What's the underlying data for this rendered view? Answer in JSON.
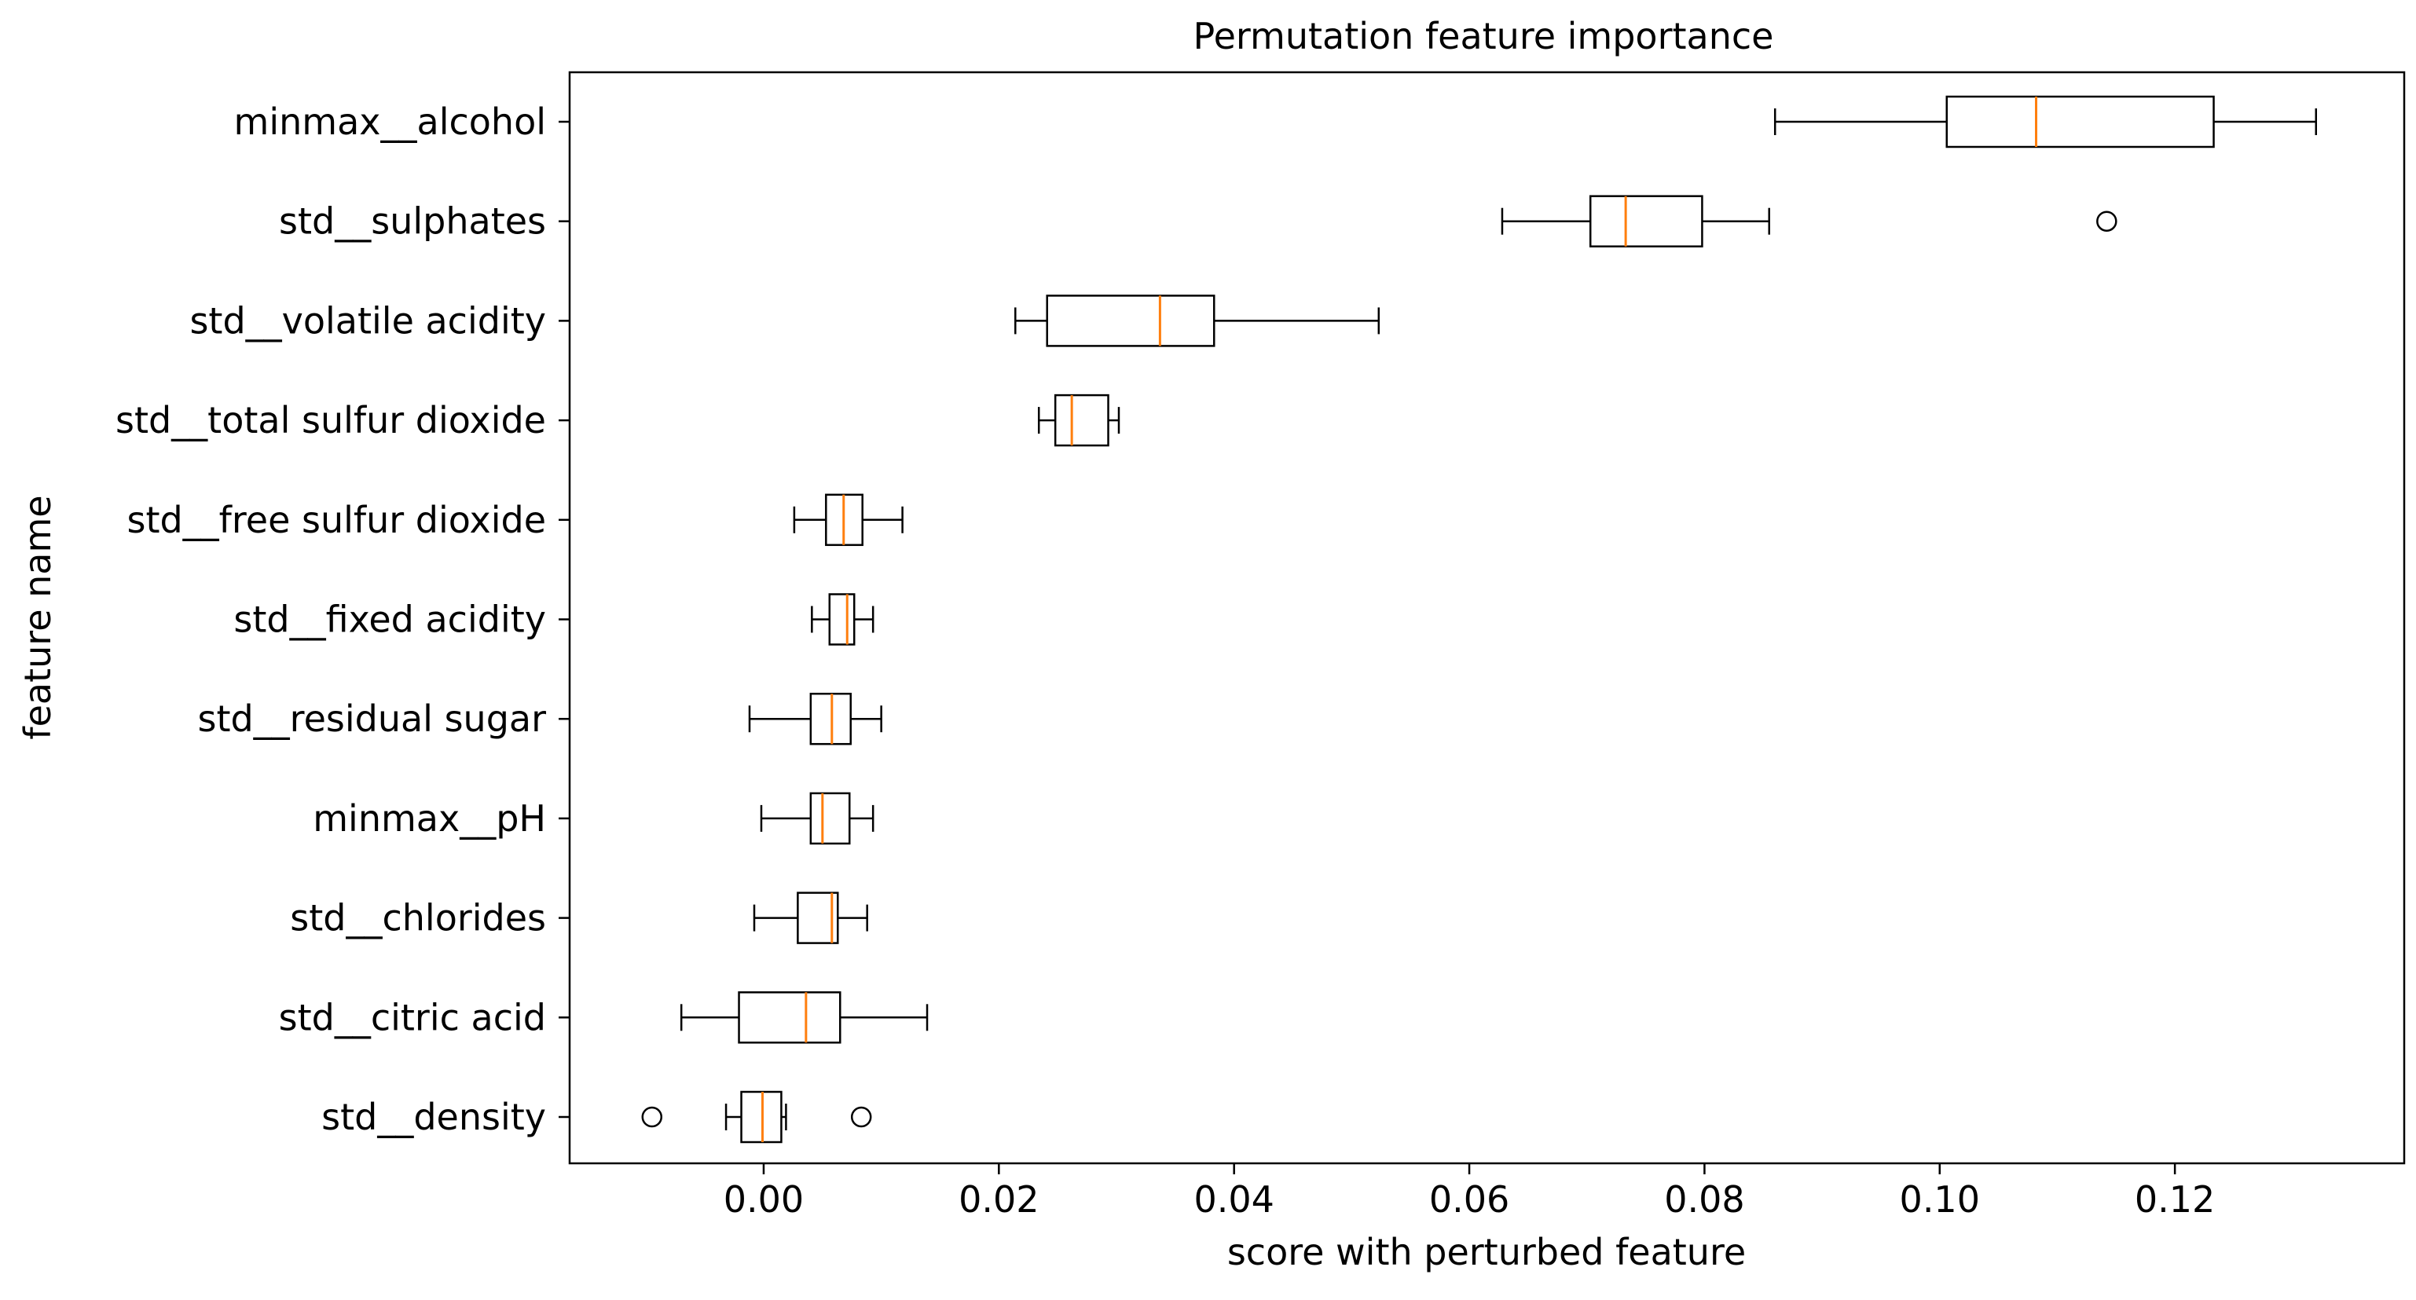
{
  "chart_data": {
    "type": "boxplot",
    "orientation": "horizontal",
    "title": "Permutation feature importance",
    "xlabel": "score with perturbed feature",
    "ylabel": "feature name",
    "xlim": [
      -0.0165,
      0.1395
    ],
    "xticks": [
      0.0,
      0.02,
      0.04,
      0.06,
      0.08,
      0.1,
      0.12
    ],
    "xtick_labels": [
      "0.00",
      "0.02",
      "0.04",
      "0.06",
      "0.08",
      "0.10",
      "0.12"
    ],
    "grid": false,
    "colors": {
      "box": "#000000",
      "median": "#ff7f0e",
      "background": "#ffffff"
    },
    "features": [
      {
        "name": "minmax__alcohol",
        "whisker_low": 0.086,
        "q1": 0.1006,
        "median": 0.1082,
        "q3": 0.1233,
        "whisker_high": 0.132,
        "outliers": []
      },
      {
        "name": "std__sulphates",
        "whisker_low": 0.0628,
        "q1": 0.0703,
        "median": 0.0733,
        "q3": 0.0798,
        "whisker_high": 0.0855,
        "outliers": [
          0.1142
        ]
      },
      {
        "name": "std__volatile acidity",
        "whisker_low": 0.0214,
        "q1": 0.0241,
        "median": 0.0337,
        "q3": 0.0383,
        "whisker_high": 0.0523,
        "outliers": []
      },
      {
        "name": "std__total sulfur dioxide",
        "whisker_low": 0.0234,
        "q1": 0.0248,
        "median": 0.0262,
        "q3": 0.0293,
        "whisker_high": 0.0302,
        "outliers": []
      },
      {
        "name": "std__free sulfur dioxide",
        "whisker_low": 0.0026,
        "q1": 0.0053,
        "median": 0.0068,
        "q3": 0.0084,
        "whisker_high": 0.0118,
        "outliers": []
      },
      {
        "name": "std__fixed acidity",
        "whisker_low": 0.0041,
        "q1": 0.0056,
        "median": 0.0071,
        "q3": 0.0077,
        "whisker_high": 0.0093,
        "outliers": []
      },
      {
        "name": "std__residual sugar",
        "whisker_low": -0.0012,
        "q1": 0.004,
        "median": 0.0058,
        "q3": 0.0074,
        "whisker_high": 0.01,
        "outliers": []
      },
      {
        "name": "minmax__pH",
        "whisker_low": -0.0002,
        "q1": 0.004,
        "median": 0.005,
        "q3": 0.0073,
        "whisker_high": 0.0093,
        "outliers": []
      },
      {
        "name": "std__chlorides",
        "whisker_low": -0.0008,
        "q1": 0.0029,
        "median": 0.0058,
        "q3": 0.0063,
        "whisker_high": 0.0088,
        "outliers": []
      },
      {
        "name": "std__citric acid",
        "whisker_low": -0.007,
        "q1": -0.0021,
        "median": 0.0036,
        "q3": 0.0065,
        "whisker_high": 0.0139,
        "outliers": []
      },
      {
        "name": "std__density",
        "whisker_low": -0.0032,
        "q1": -0.0019,
        "median": -0.0001,
        "q3": 0.0015,
        "whisker_high": 0.0019,
        "outliers": [
          -0.0095,
          0.0083
        ]
      }
    ]
  }
}
